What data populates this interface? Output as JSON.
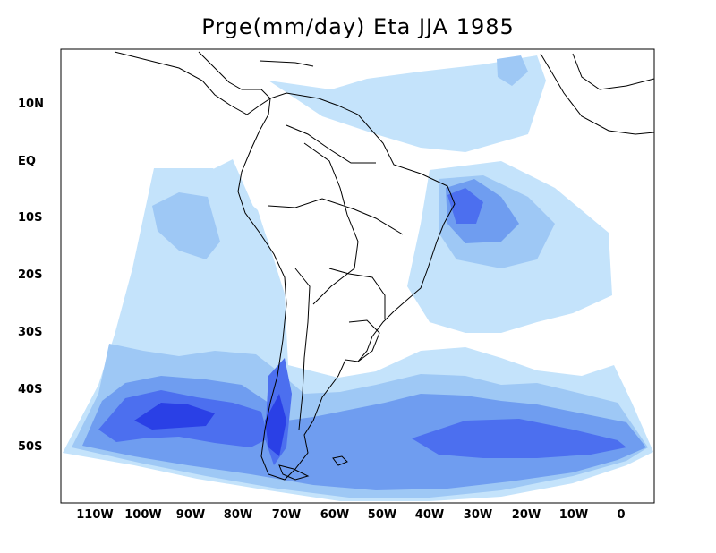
{
  "title": "Prge(mm/day) Eta JJA 1985",
  "lat_labels": [
    "10N",
    "EQ",
    "10S",
    "20S",
    "30S",
    "40S",
    "50S"
  ],
  "lon_labels": [
    "110W",
    "100W",
    "90W",
    "80W",
    "70W",
    "60W",
    "50W",
    "40W",
    "30W",
    "20W",
    "10W",
    "0"
  ],
  "colors": {
    "level1": "#c4e3fb",
    "level2": "#9ec8f5",
    "level3": "#6f9df0",
    "level4": "#4c6fef",
    "level5": "#2a40e6",
    "coastline": "#000000"
  }
}
